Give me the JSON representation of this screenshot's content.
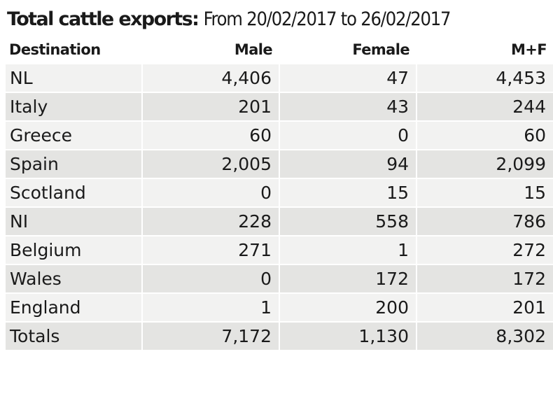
{
  "title": {
    "bold": "Total cattle exports:",
    "range": "From 20/02/2017 to 26/02/2017"
  },
  "headers": [
    "Destination",
    "Male",
    "Female",
    "M+F"
  ],
  "chart_data": {
    "type": "table",
    "columns": [
      "Destination",
      "Male",
      "Female",
      "M+F"
    ],
    "rows": [
      [
        "NL",
        "4,406",
        "47",
        "4,453"
      ],
      [
        "Italy",
        "201",
        "43",
        "244"
      ],
      [
        "Greece",
        "60",
        "0",
        "60"
      ],
      [
        "Spain",
        "2,005",
        "94",
        "2,099"
      ],
      [
        "Scotland",
        "0",
        "15",
        "15"
      ],
      [
        "NI",
        "228",
        "558",
        "786"
      ],
      [
        "Belgium",
        "271",
        "1",
        "272"
      ],
      [
        "Wales",
        "0",
        "172",
        "172"
      ],
      [
        "England",
        "1",
        "200",
        "201"
      ],
      [
        "Totals",
        "7,172",
        "1,130",
        "8,302"
      ]
    ]
  }
}
